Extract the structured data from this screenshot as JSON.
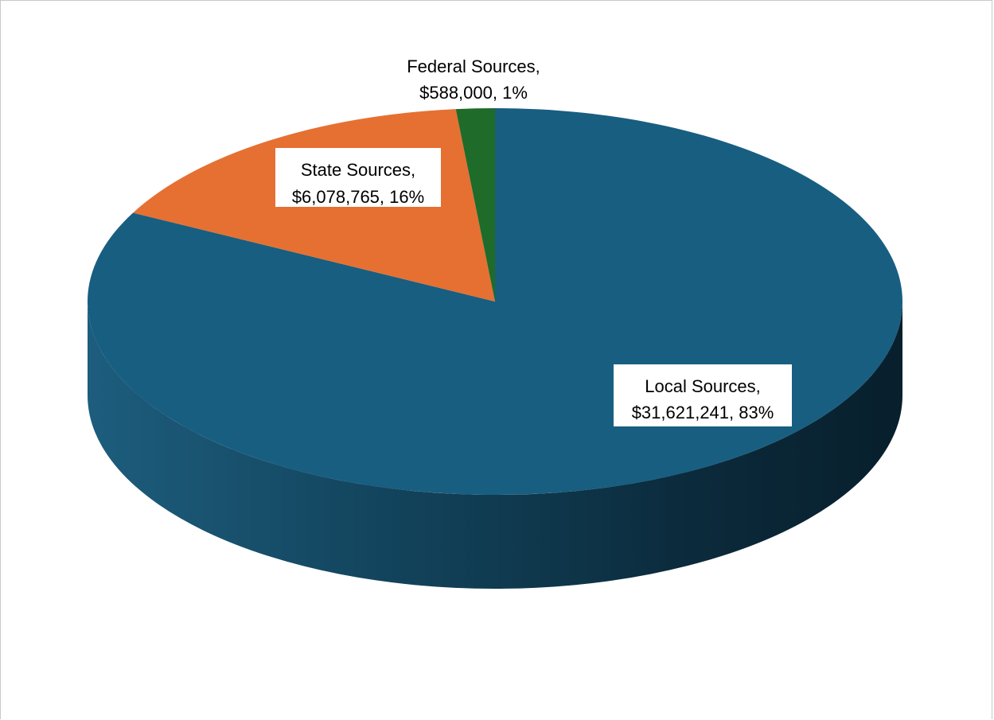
{
  "chart_data": {
    "type": "pie",
    "style": "3d",
    "title": "",
    "slices": [
      {
        "name": "Local Sources",
        "value": 31621241,
        "percent": 83,
        "color": "#185e80",
        "label_line1": "Local Sources,",
        "label_line2": "$31,621,241, 83%"
      },
      {
        "name": "State Sources",
        "value": 6078765,
        "percent": 16,
        "color": "#e57032",
        "label_line1": "State Sources,",
        "label_line2": "$6,078,765, 16%"
      },
      {
        "name": "Federal Sources",
        "value": 588000,
        "percent": 1,
        "color": "#1f6b2a",
        "label_line1": "Federal Sources,",
        "label_line2": "$588,000, 1%"
      }
    ],
    "legend": "none"
  }
}
